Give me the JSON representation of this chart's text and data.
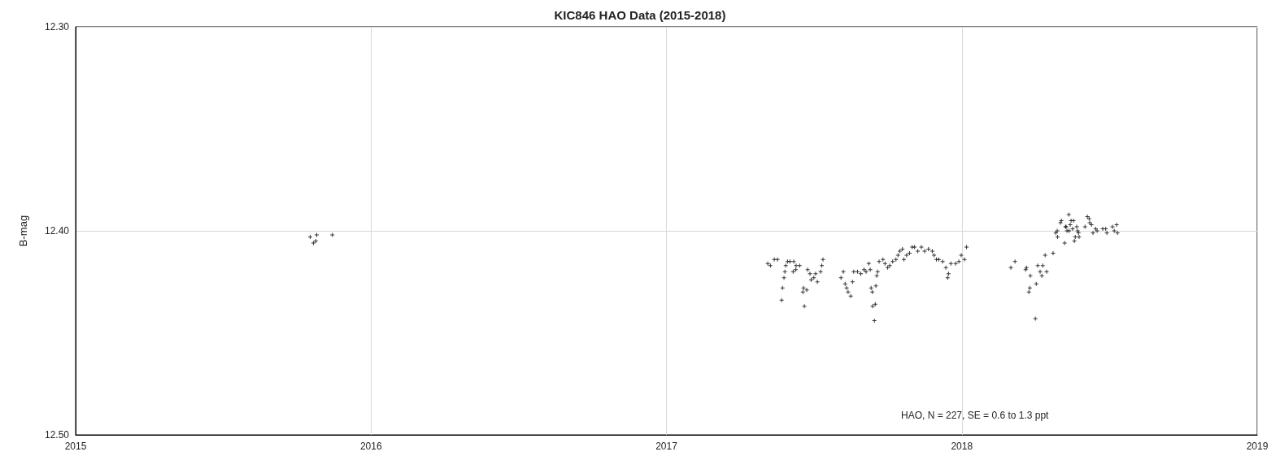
{
  "chart_data": {
    "type": "scatter",
    "title": "KIC846 HAO Data (2015-2018)",
    "ylabel": "B-mag",
    "annotations": [
      "HAO, N = 227, SE = 0.6 to 1.3 ppt"
    ],
    "x": [
      2015.794,
      2015.805,
      2015.813,
      2015.816,
      2015.869,
      2017.343,
      2017.352,
      2017.365,
      2017.376,
      2017.39,
      2017.393,
      2017.398,
      2017.401,
      2017.404,
      2017.41,
      2017.418,
      2017.429,
      2017.431,
      2017.438,
      2017.439,
      2017.451,
      2017.462,
      2017.464,
      2017.467,
      2017.475,
      2017.478,
      2017.486,
      2017.49,
      2017.499,
      2017.505,
      2017.511,
      2017.522,
      2017.526,
      2017.53,
      2017.591,
      2017.599,
      2017.605,
      2017.61,
      2017.615,
      2017.624,
      2017.63,
      2017.634,
      2017.647,
      2017.658,
      2017.669,
      2017.676,
      2017.685,
      2017.69,
      2017.693,
      2017.697,
      2017.698,
      2017.704,
      2017.707,
      2017.709,
      2017.712,
      2017.715,
      2017.72,
      2017.733,
      2017.74,
      2017.749,
      2017.756,
      2017.766,
      2017.777,
      2017.784,
      2017.79,
      2017.799,
      2017.804,
      2017.813,
      2017.823,
      2017.832,
      2017.84,
      2017.851,
      2017.863,
      2017.874,
      2017.887,
      2017.9,
      2017.906,
      2017.914,
      2017.922,
      2017.935,
      2017.946,
      2017.952,
      2017.955,
      2017.963,
      2017.979,
      2017.99,
      2017.998,
      2018.009,
      2018.016,
      2018.166,
      2018.18,
      2018.216,
      2018.219,
      2018.227,
      2018.23,
      2018.232,
      2018.249,
      2018.252,
      2018.257,
      2018.265,
      2018.271,
      2018.274,
      2018.282,
      2018.287,
      2018.309,
      2018.318,
      2018.323,
      2018.324,
      2018.334,
      2018.337,
      2018.348,
      2018.351,
      2018.353,
      2018.356,
      2018.362,
      2018.363,
      2018.367,
      2018.37,
      2018.375,
      2018.378,
      2018.381,
      2018.384,
      2018.389,
      2018.392,
      2018.395,
      2018.397,
      2018.417,
      2018.425,
      2018.431,
      2018.433,
      2018.439,
      2018.444,
      2018.453,
      2018.458,
      2018.477,
      2018.487,
      2018.491,
      2018.51,
      2018.516,
      2018.524,
      2018.527
    ],
    "series": [
      {
        "color": "#000000",
        "values": [
          12.403,
          12.406,
          12.405,
          12.402,
          12.402,
          12.416,
          12.417,
          12.414,
          12.414,
          12.434,
          12.428,
          12.423,
          12.42,
          12.417,
          12.415,
          12.415,
          12.42,
          12.415,
          12.419,
          12.417,
          12.417,
          12.43,
          12.428,
          12.437,
          12.429,
          12.419,
          12.421,
          12.424,
          12.423,
          12.421,
          12.425,
          12.42,
          12.417,
          12.414,
          12.423,
          12.42,
          12.426,
          12.428,
          12.43,
          12.432,
          12.425,
          12.42,
          12.42,
          12.421,
          12.419,
          12.42,
          12.416,
          12.419,
          12.428,
          12.43,
          12.437,
          12.444,
          12.436,
          12.427,
          12.422,
          12.42,
          12.415,
          12.414,
          12.416,
          12.418,
          12.417,
          12.415,
          12.414,
          12.412,
          12.41,
          12.409,
          12.414,
          12.412,
          12.411,
          12.408,
          12.408,
          12.41,
          12.408,
          12.41,
          12.409,
          12.41,
          12.412,
          12.414,
          12.414,
          12.415,
          12.418,
          12.423,
          12.421,
          12.416,
          12.416,
          12.415,
          12.412,
          12.414,
          12.408,
          12.418,
          12.415,
          12.419,
          12.418,
          12.43,
          12.428,
          12.422,
          12.443,
          12.426,
          12.417,
          12.42,
          12.422,
          12.417,
          12.412,
          12.42,
          12.411,
          12.401,
          12.4,
          12.403,
          12.396,
          12.395,
          12.406,
          12.398,
          12.398,
          12.4,
          12.392,
          12.4,
          12.397,
          12.395,
          12.399,
          12.395,
          12.405,
          12.403,
          12.398,
          12.4,
          12.401,
          12.403,
          12.398,
          12.393,
          12.394,
          12.396,
          12.397,
          12.401,
          12.399,
          12.4,
          12.399,
          12.399,
          12.401,
          12.398,
          12.4,
          12.397,
          12.401
        ]
      }
    ],
    "xlim": [
      2015,
      2019
    ],
    "xticks": [
      2015,
      2016,
      2017,
      2018,
      2019
    ],
    "ylim": [
      12.5,
      12.3
    ],
    "yticks": [
      {
        "value": 12.5,
        "label": "12.50"
      },
      {
        "value": 12.4,
        "label": "12.40"
      },
      {
        "value": 12.3,
        "label": "12.30"
      }
    ],
    "grid": true,
    "marker": "cross"
  }
}
